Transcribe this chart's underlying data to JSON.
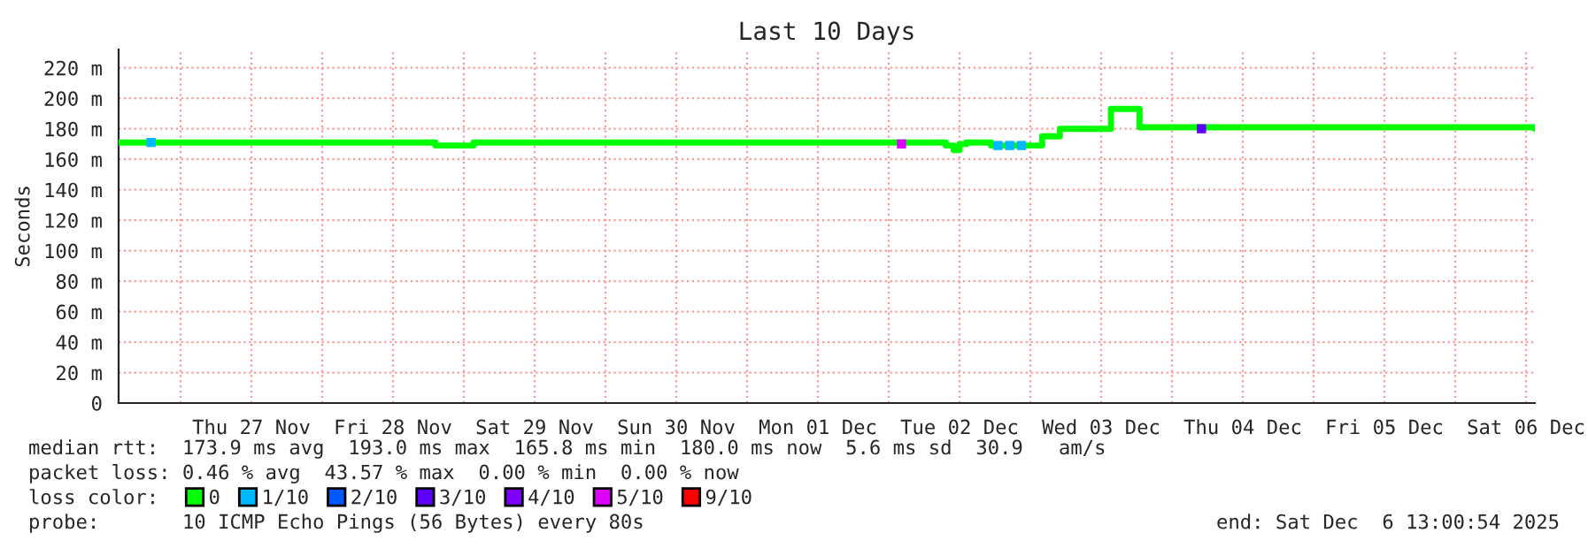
{
  "chart_data": {
    "type": "step",
    "title": "Last 10 Days",
    "ylabel": "Seconds",
    "legend_title": "loss color:",
    "legend": "bottom",
    "grid": true,
    "line_style": "solid",
    "xlim": [
      "2025-11-26T13:30",
      "2025-12-06T13:30"
    ],
    "xticks": [
      {
        "value": "2025-11-27T00:00",
        "label": null
      },
      {
        "value": "2025-11-27T12:00",
        "label": "Thu 27 Nov"
      },
      {
        "value": "2025-11-28T00:00",
        "label": null
      },
      {
        "value": "2025-11-28T12:00",
        "label": "Fri 28 Nov"
      },
      {
        "value": "2025-11-29T00:00",
        "label": null
      },
      {
        "value": "2025-11-29T12:00",
        "label": "Sat 29 Nov"
      },
      {
        "value": "2025-11-30T00:00",
        "label": null
      },
      {
        "value": "2025-11-30T12:00",
        "label": "Sun 30 Nov"
      },
      {
        "value": "2025-12-01T00:00",
        "label": null
      },
      {
        "value": "2025-12-01T12:00",
        "label": "Mon 01 Dec"
      },
      {
        "value": "2025-12-02T00:00",
        "label": null
      },
      {
        "value": "2025-12-02T12:00",
        "label": "Tue 02 Dec"
      },
      {
        "value": "2025-12-03T00:00",
        "label": null
      },
      {
        "value": "2025-12-03T12:00",
        "label": "Wed 03 Dec"
      },
      {
        "value": "2025-12-04T00:00",
        "label": null
      },
      {
        "value": "2025-12-04T12:00",
        "label": "Thu 04 Dec"
      },
      {
        "value": "2025-12-05T00:00",
        "label": null
      },
      {
        "value": "2025-12-05T12:00",
        "label": "Fri 05 Dec"
      },
      {
        "value": "2025-12-06T00:00",
        "label": null
      },
      {
        "value": "2025-12-06T12:00",
        "label": "Sat 06 Dec"
      }
    ],
    "ylim": [
      0,
      232
    ],
    "yticks": [
      0,
      {
        "value": 20,
        "label": "20 m"
      },
      {
        "value": 40,
        "label": "40 m"
      },
      {
        "value": 60,
        "label": "60 m"
      },
      {
        "value": 80,
        "label": "80 m"
      },
      {
        "value": 100,
        "label": "100 m"
      },
      {
        "value": 120,
        "label": "120 m"
      },
      {
        "value": 140,
        "label": "140 m"
      },
      {
        "value": 160,
        "label": "160 m"
      },
      {
        "value": 180,
        "label": "180 m"
      },
      {
        "value": 200,
        "label": "200 m"
      },
      {
        "value": 220,
        "label": "220 m"
      }
    ],
    "series": [
      {
        "name": "0",
        "color": "#00ff00",
        "x": [
          "2025-11-26T13:30",
          "2025-11-28T19:00",
          "2025-11-28T19:10",
          "2025-11-29T01:30",
          "2025-11-29T01:40",
          "2025-12-02T08:20",
          "2025-12-02T09:40",
          "2025-12-02T11:00",
          "2025-12-02T12:00",
          "2025-12-02T13:10",
          "2025-12-02T15:50",
          "2025-12-02T17:20",
          "2025-12-03T01:00",
          "2025-12-03T02:00",
          "2025-12-03T05:00",
          "2025-12-03T13:40",
          "2025-12-03T17:40",
          "2025-12-03T18:30",
          "2025-12-06T13:30"
        ],
        "values": [
          171,
          171,
          169,
          169,
          171,
          171,
          169,
          166,
          170,
          171,
          171,
          169,
          169,
          175,
          180,
          193,
          193,
          181,
          180
        ]
      },
      {
        "name": "1/10",
        "color": "#00b8ff",
        "type": "scatter",
        "marker": "square",
        "x": [
          "2025-11-26T19:00",
          "2025-12-02T18:30",
          "2025-12-02T20:30",
          "2025-12-02T22:30"
        ],
        "values": [
          171,
          169,
          169,
          169
        ]
      },
      {
        "name": "2/10",
        "color": "#0059ff",
        "type": "scatter",
        "marker": "square"
      },
      {
        "name": "3/10",
        "color": "#5e00ff",
        "type": "scatter",
        "marker": "square",
        "x": [
          "2025-12-04T05:00"
        ],
        "values": [
          180
        ]
      },
      {
        "name": "4/10",
        "color": "#7e00ff",
        "type": "scatter",
        "marker": "square"
      },
      {
        "name": "5/10",
        "color": "#dd00ff",
        "type": "scatter",
        "marker": "square",
        "x": [
          "2025-12-02T02:10"
        ],
        "values": [
          170
        ]
      },
      {
        "name": "9/10",
        "color": "#ff0000",
        "type": "scatter",
        "marker": "square"
      }
    ],
    "annotations": [
      "median rtt:  173.9 ms avg  193.0 ms max  165.8 ms min  180.0 ms now  5.6 ms sd  30.9   am/s",
      "packet loss: 0.46 % avg  43.57 % max  0.00 % min  0.00 % now",
      "probe:       10 ICMP Echo Pings (56 Bytes) every 80s",
      "end: Sat Dec  6 13:00:54 2025"
    ]
  }
}
